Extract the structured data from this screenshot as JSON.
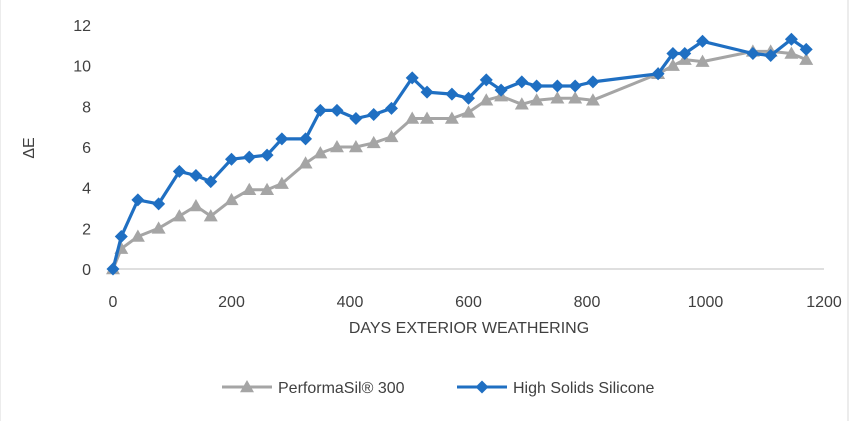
{
  "chart_data": {
    "type": "line",
    "title": "",
    "xlabel": "DAYS EXTERIOR WEATHERING",
    "ylabel": "ΔE",
    "xlim": [
      0,
      1200
    ],
    "ylim": [
      0,
      12
    ],
    "x_ticks": [
      "0",
      "200",
      "400",
      "600",
      "800",
      "1000",
      "1200"
    ],
    "y_ticks": [
      "0",
      "2",
      "4",
      "6",
      "8",
      "10",
      "12"
    ],
    "grid": false,
    "legend_position": "bottom",
    "series": [
      {
        "name": "PerformaSil® 300",
        "marker": "triangle",
        "color": "#a5a5a5",
        "x": [
          0,
          14,
          42,
          77,
          112,
          140,
          165,
          200,
          230,
          260,
          285,
          325,
          350,
          378,
          410,
          440,
          470,
          505,
          530,
          572,
          600,
          630,
          655,
          690,
          715,
          750,
          780,
          810,
          920,
          945,
          965,
          995,
          1080,
          1110,
          1145,
          1170
        ],
        "y": [
          0,
          1.0,
          1.6,
          2.0,
          2.6,
          3.1,
          2.6,
          3.4,
          3.9,
          3.9,
          4.2,
          5.2,
          5.7,
          6.0,
          6.0,
          6.2,
          6.5,
          7.4,
          7.4,
          7.4,
          7.7,
          8.3,
          8.5,
          8.1,
          8.3,
          8.4,
          8.4,
          8.3,
          9.6,
          10.0,
          10.3,
          10.2,
          10.7,
          10.7,
          10.6,
          10.3
        ]
      },
      {
        "name": "High Solids Silicone",
        "marker": "diamond",
        "color": "#1f6fc2",
        "x": [
          0,
          14,
          42,
          77,
          112,
          140,
          165,
          200,
          230,
          260,
          285,
          325,
          350,
          378,
          410,
          440,
          470,
          505,
          530,
          572,
          600,
          630,
          655,
          690,
          715,
          750,
          780,
          810,
          920,
          945,
          965,
          995,
          1080,
          1110,
          1145,
          1170
        ],
        "y": [
          0,
          1.6,
          3.4,
          3.2,
          4.8,
          4.6,
          4.3,
          5.4,
          5.5,
          5.6,
          6.4,
          6.4,
          7.8,
          7.8,
          7.4,
          7.6,
          7.9,
          9.4,
          8.7,
          8.6,
          8.4,
          9.3,
          8.8,
          9.2,
          9.0,
          9.0,
          9.0,
          9.2,
          9.6,
          10.6,
          10.6,
          11.2,
          10.6,
          10.5,
          11.3,
          10.8
        ]
      }
    ]
  }
}
